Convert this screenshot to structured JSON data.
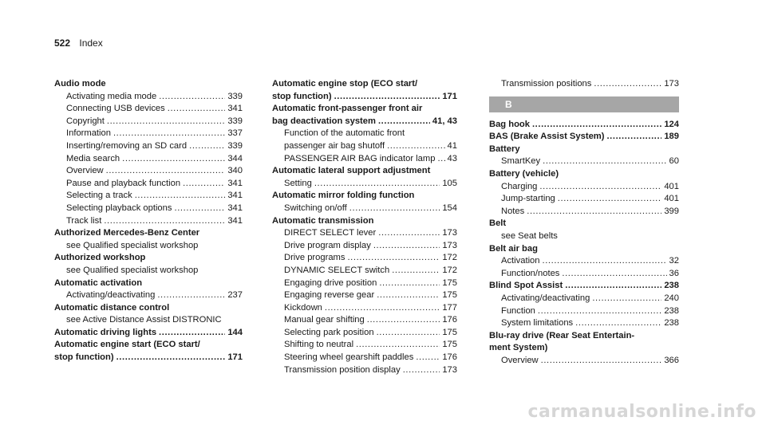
{
  "page": {
    "number": "522",
    "label": "Index"
  },
  "col1": [
    {
      "title": "Audio mode",
      "subs": [
        {
          "text": "Activating media mode",
          "page": "339"
        },
        {
          "text": "Connecting USB devices",
          "page": "341"
        },
        {
          "text": "Copyright",
          "page": "339"
        },
        {
          "text": "Information",
          "page": "337"
        },
        {
          "text": "Inserting/removing an SD card",
          "page": "339"
        },
        {
          "text": "Media search",
          "page": "344"
        },
        {
          "text": "Overview",
          "page": "340"
        },
        {
          "text": "Pause and playback function",
          "page": "341"
        },
        {
          "text": "Selecting a track",
          "page": "341"
        },
        {
          "text": "Selecting playback options",
          "page": "341"
        },
        {
          "text": "Track list",
          "page": "341"
        }
      ]
    },
    {
      "title": "Authorized Mercedes-Benz Center",
      "subs": [
        {
          "text": "see Qualified specialist workshop"
        }
      ]
    },
    {
      "title": "Authorized workshop",
      "subs": [
        {
          "text": "see Qualified specialist workshop"
        }
      ]
    },
    {
      "title": "Automatic activation",
      "subs": [
        {
          "text": "Activating/deactivating",
          "page": "237"
        }
      ]
    },
    {
      "title": "Automatic distance control",
      "subs": [
        {
          "text": "see Active Distance Assist DISTRONIC"
        }
      ]
    },
    {
      "title": "Automatic driving lights",
      "page": "144"
    },
    {
      "title": "Automatic engine start (ECO start/",
      "title2": "stop function)",
      "page": "171"
    }
  ],
  "col2": [
    {
      "title": "Automatic engine stop (ECO start/",
      "title2": "stop function)",
      "page": "171"
    },
    {
      "title": "Automatic front-passenger front air",
      "title2": "bag deactivation system",
      "page": "41, 43",
      "subs": [
        {
          "text": "Function of the automatic front"
        },
        {
          "text": "passenger air bag shutoff",
          "page": "41"
        },
        {
          "text": "PASSENGER AIR BAG indicator lamp",
          "page": "43"
        }
      ]
    },
    {
      "title": "Automatic lateral support adjustment",
      "subs": [
        {
          "text": "Setting",
          "page": "105"
        }
      ]
    },
    {
      "title": "Automatic mirror folding function",
      "subs": [
        {
          "text": "Switching on/off",
          "page": "154"
        }
      ]
    },
    {
      "title": "Automatic transmission",
      "subs": [
        {
          "text": "DIRECT SELECT lever",
          "page": "173"
        },
        {
          "text": "Drive program display",
          "page": "173"
        },
        {
          "text": "Drive programs",
          "page": "172"
        },
        {
          "text": "DYNAMIC SELECT switch",
          "page": "172"
        },
        {
          "text": "Engaging drive position",
          "page": "175"
        },
        {
          "text": "Engaging reverse gear",
          "page": "175"
        },
        {
          "text": "Kickdown",
          "page": "177"
        },
        {
          "text": "Manual gear shifting",
          "page": "176"
        },
        {
          "text": "Selecting park position",
          "page": "175"
        },
        {
          "text": "Shifting to neutral",
          "page": "175"
        },
        {
          "text": "Steering wheel gearshift paddles",
          "page": "176"
        },
        {
          "text": "Transmission position display",
          "page": "173"
        }
      ]
    }
  ],
  "col3": {
    "lead_subs": [
      {
        "text": "Transmission positions",
        "page": "173"
      }
    ],
    "letter": "B",
    "entries": [
      {
        "title": "Bag hook",
        "page": "124"
      },
      {
        "title": "BAS (Brake Assist System)",
        "page": "189"
      },
      {
        "title": "Battery",
        "subs": [
          {
            "text": "SmartKey",
            "page": "60"
          }
        ]
      },
      {
        "title": "Battery (vehicle)",
        "subs": [
          {
            "text": "Charging",
            "page": "401"
          },
          {
            "text": "Jump-starting",
            "page": "401"
          },
          {
            "text": "Notes",
            "page": "399"
          }
        ]
      },
      {
        "title": "Belt",
        "subs": [
          {
            "text": "see Seat belts"
          }
        ]
      },
      {
        "title": "Belt air bag",
        "subs": [
          {
            "text": "Activation",
            "page": "32"
          },
          {
            "text": "Function/notes",
            "page": "36"
          }
        ]
      },
      {
        "title": "Blind Spot Assist",
        "page": "238",
        "subs": [
          {
            "text": "Activating/deactivating",
            "page": "240"
          },
          {
            "text": "Function",
            "page": "238"
          },
          {
            "text": "System limitations",
            "page": "238"
          }
        ]
      },
      {
        "title": "Blu-ray drive (Rear Seat Entertain-",
        "title2": "ment System)",
        "subs": [
          {
            "text": "Overview",
            "page": "366"
          }
        ]
      }
    ]
  },
  "watermark": "carmanualsonline.info"
}
